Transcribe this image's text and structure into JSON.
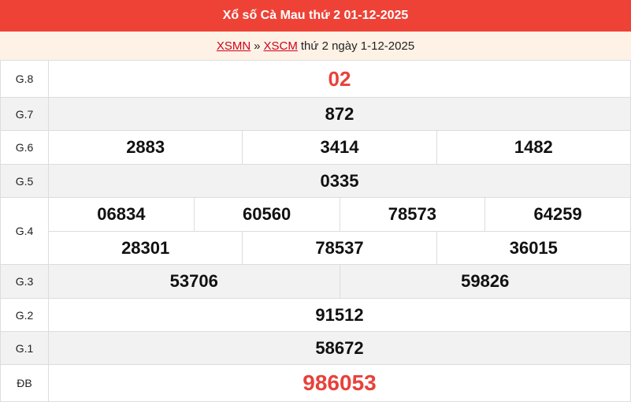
{
  "header": {
    "title": "Xổ số Cà Mau thứ 2 01-12-2025"
  },
  "breadcrumb": {
    "link1": "XSMN",
    "sep": "»",
    "link2": "XSCM",
    "text": "thứ 2 ngày 1-12-2025"
  },
  "prizes": {
    "g8": {
      "label": "G.8",
      "values": [
        "02"
      ]
    },
    "g7": {
      "label": "G.7",
      "values": [
        "872"
      ]
    },
    "g6": {
      "label": "G.6",
      "values": [
        "2883",
        "3414",
        "1482"
      ]
    },
    "g5": {
      "label": "G.5",
      "values": [
        "0335"
      ]
    },
    "g4": {
      "label": "G.4",
      "values": [
        "06834",
        "60560",
        "78573",
        "64259",
        "28301",
        "78537",
        "36015"
      ]
    },
    "g3": {
      "label": "G.3",
      "values": [
        "53706",
        "59826"
      ]
    },
    "g2": {
      "label": "G.2",
      "values": [
        "91512"
      ]
    },
    "g1": {
      "label": "G.1",
      "values": [
        "58672"
      ]
    },
    "db": {
      "label": "ĐB",
      "values": [
        "986053"
      ]
    }
  },
  "colors": {
    "header": "#ee4237",
    "highlight": "#e8413a",
    "subheader": "#fef2e6"
  }
}
